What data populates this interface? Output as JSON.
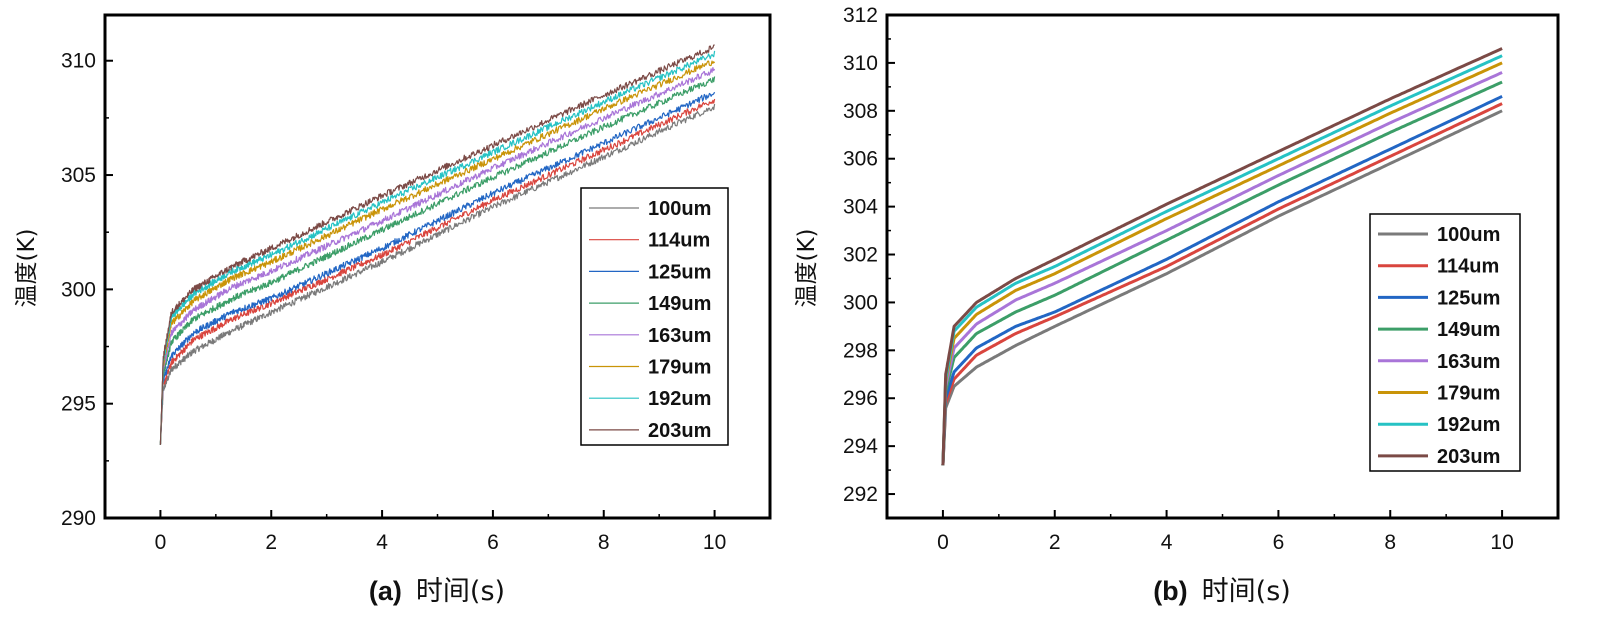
{
  "chart_data": [
    {
      "type": "line",
      "id": "a",
      "caption_label": "(a)",
      "xlabel": "时间(s)",
      "ylabel": "温度(K)",
      "xlim": [
        -1,
        11
      ],
      "ylim": [
        290,
        312
      ],
      "xticks": [
        0,
        2,
        4,
        6,
        8,
        10
      ],
      "yticks": [
        290,
        295,
        300,
        305,
        310
      ],
      "xtick_labels": [
        "0",
        "2",
        "4",
        "6",
        "8",
        "10"
      ],
      "ytick_labels": [
        "290",
        "295",
        "300",
        "305",
        "310"
      ],
      "noisy": true,
      "line_width": 1.2,
      "legend_position": "right-center",
      "series": [
        {
          "name": "100um",
          "color": "#7a7a7a",
          "x": [
            0,
            0.05,
            0.2,
            0.6,
            1.3,
            2,
            4,
            6,
            8,
            10
          ],
          "values": [
            293.2,
            295.6,
            296.5,
            297.3,
            298.2,
            299.0,
            301.2,
            303.6,
            305.8,
            308.0
          ]
        },
        {
          "name": "114um",
          "color": "#d9453e",
          "x": [
            0,
            0.05,
            0.2,
            0.6,
            1.3,
            2,
            4,
            6,
            8,
            10
          ],
          "values": [
            293.2,
            295.8,
            296.8,
            297.8,
            298.7,
            299.4,
            301.5,
            303.9,
            306.1,
            308.3
          ]
        },
        {
          "name": "125um",
          "color": "#2266c4",
          "x": [
            0,
            0.05,
            0.2,
            0.6,
            1.3,
            2,
            4,
            6,
            8,
            10
          ],
          "values": [
            293.2,
            296.0,
            297.1,
            298.1,
            299.0,
            299.6,
            301.8,
            304.2,
            306.4,
            308.6
          ]
        },
        {
          "name": "149um",
          "color": "#3c9e68",
          "x": [
            0,
            0.05,
            0.2,
            0.6,
            1.3,
            2,
            4,
            6,
            8,
            10
          ],
          "values": [
            293.2,
            296.3,
            297.7,
            298.7,
            299.6,
            300.3,
            302.6,
            304.9,
            307.1,
            309.2
          ]
        },
        {
          "name": "163um",
          "color": "#a975d8",
          "x": [
            0,
            0.05,
            0.2,
            0.6,
            1.3,
            2,
            4,
            6,
            8,
            10
          ],
          "values": [
            293.2,
            296.5,
            298.1,
            299.1,
            300.1,
            300.8,
            303.0,
            305.3,
            307.5,
            309.6
          ]
        },
        {
          "name": "179um",
          "color": "#c99408",
          "x": [
            0,
            0.05,
            0.2,
            0.6,
            1.3,
            2,
            4,
            6,
            8,
            10
          ],
          "values": [
            293.2,
            296.7,
            298.5,
            299.5,
            300.5,
            301.2,
            303.5,
            305.7,
            307.9,
            310.0
          ]
        },
        {
          "name": "192um",
          "color": "#26c2c4",
          "x": [
            0,
            0.05,
            0.2,
            0.6,
            1.3,
            2,
            4,
            6,
            8,
            10
          ],
          "values": [
            293.2,
            296.8,
            298.8,
            299.8,
            300.8,
            301.5,
            303.8,
            306.0,
            308.2,
            310.3
          ]
        },
        {
          "name": "203um",
          "color": "#7b4a46",
          "x": [
            0,
            0.05,
            0.2,
            0.6,
            1.3,
            2,
            4,
            6,
            8,
            10
          ],
          "values": [
            293.2,
            297.0,
            299.0,
            300.0,
            301.0,
            301.8,
            304.1,
            306.3,
            308.5,
            310.6
          ]
        }
      ]
    },
    {
      "type": "line",
      "id": "b",
      "caption_label": "(b)",
      "xlabel": "时间(s)",
      "ylabel": "温度(K)",
      "xlim": [
        -1,
        11
      ],
      "ylim": [
        291,
        312
      ],
      "xticks": [
        0,
        2,
        4,
        6,
        8,
        10
      ],
      "yticks": [
        292,
        294,
        296,
        298,
        300,
        302,
        304,
        306,
        308,
        310,
        312
      ],
      "xtick_labels": [
        "0",
        "2",
        "4",
        "6",
        "8",
        "10"
      ],
      "ytick_labels": [
        "292",
        "294",
        "296",
        "298",
        "300",
        "302",
        "304",
        "306",
        "308",
        "310",
        "312"
      ],
      "noisy": false,
      "line_width": 3,
      "legend_position": "right-center",
      "series": [
        {
          "name": "100um",
          "color": "#7a7a7a",
          "x": [
            0,
            0.05,
            0.2,
            0.6,
            1.3,
            2,
            4,
            6,
            8,
            10
          ],
          "values": [
            293.2,
            295.6,
            296.5,
            297.3,
            298.2,
            299.0,
            301.2,
            303.6,
            305.8,
            308.0
          ]
        },
        {
          "name": "114um",
          "color": "#d9453e",
          "x": [
            0,
            0.05,
            0.2,
            0.6,
            1.3,
            2,
            4,
            6,
            8,
            10
          ],
          "values": [
            293.2,
            295.8,
            296.8,
            297.8,
            298.7,
            299.4,
            301.5,
            303.9,
            306.1,
            308.3
          ]
        },
        {
          "name": "125um",
          "color": "#2266c4",
          "x": [
            0,
            0.05,
            0.2,
            0.6,
            1.3,
            2,
            4,
            6,
            8,
            10
          ],
          "values": [
            293.2,
            296.0,
            297.1,
            298.1,
            299.0,
            299.6,
            301.8,
            304.2,
            306.4,
            308.6
          ]
        },
        {
          "name": "149um",
          "color": "#3c9e68",
          "x": [
            0,
            0.05,
            0.2,
            0.6,
            1.3,
            2,
            4,
            6,
            8,
            10
          ],
          "values": [
            293.2,
            296.3,
            297.7,
            298.7,
            299.6,
            300.3,
            302.6,
            304.9,
            307.1,
            309.2
          ]
        },
        {
          "name": "163um",
          "color": "#a975d8",
          "x": [
            0,
            0.05,
            0.2,
            0.6,
            1.3,
            2,
            4,
            6,
            8,
            10
          ],
          "values": [
            293.2,
            296.5,
            298.1,
            299.1,
            300.1,
            300.8,
            303.0,
            305.3,
            307.5,
            309.6
          ]
        },
        {
          "name": "179um",
          "color": "#c99408",
          "x": [
            0,
            0.05,
            0.2,
            0.6,
            1.3,
            2,
            4,
            6,
            8,
            10
          ],
          "values": [
            293.2,
            296.7,
            298.5,
            299.5,
            300.5,
            301.2,
            303.5,
            305.7,
            307.9,
            310.0
          ]
        },
        {
          "name": "192um",
          "color": "#26c2c4",
          "x": [
            0,
            0.05,
            0.2,
            0.6,
            1.3,
            2,
            4,
            6,
            8,
            10
          ],
          "values": [
            293.2,
            296.8,
            298.8,
            299.8,
            300.8,
            301.5,
            303.8,
            306.0,
            308.2,
            310.3
          ]
        },
        {
          "name": "203um",
          "color": "#7b4a46",
          "x": [
            0,
            0.05,
            0.2,
            0.6,
            1.3,
            2,
            4,
            6,
            8,
            10
          ],
          "values": [
            293.2,
            297.0,
            299.0,
            300.0,
            301.0,
            301.8,
            304.1,
            306.3,
            308.5,
            310.6
          ]
        }
      ]
    }
  ]
}
